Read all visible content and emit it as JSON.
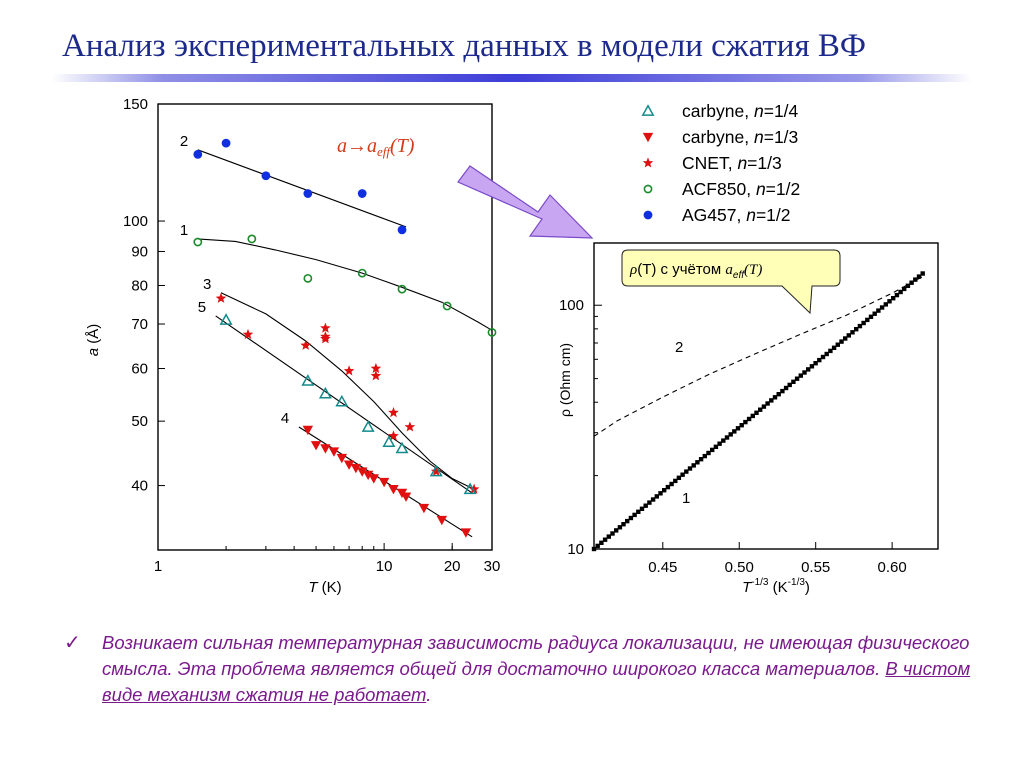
{
  "title": "Анализ экспериментальных данных в модели сжатия ВФ",
  "annotation_left": {
    "a": "a",
    "arrow": "→",
    "a_eff": "a",
    "eff_sub": "eff",
    "arg": "(T)"
  },
  "callout": {
    "rho": "ρ",
    "T": "(T)",
    "middle": " с учётом ",
    "a": "a",
    "eff_sub": "eff",
    "arg": "(T)"
  },
  "colors": {
    "title": "#1c2a8c",
    "text": "#7a1a8c",
    "annotation": "#d43a1a",
    "blue": "#1030e0",
    "green": "#1a8a2a",
    "red": "#e01010",
    "teal": "#138a8a",
    "arrow_fill": "#c9a6f2",
    "callout_fill": "#ffffb8"
  },
  "conclusion": {
    "check": "✓",
    "text": "Возникает сильная температурная зависимость радиуса локализации, не имеющая физического смысла. Эта проблема является общей для достаточно широкого класса материалов. ",
    "emph": "В чистом виде механизм сжатия не работает",
    "end": "."
  },
  "chart_data": [
    {
      "type": "scatter",
      "scale": "log-log",
      "xlabel_italic": "T",
      "xlabel_rest": " (K)",
      "ylabel_italic": "a",
      "ylabel_rest": " (Å)",
      "xlim": [
        1,
        30
      ],
      "ylim": [
        32,
        150
      ],
      "x_ticks": [
        {
          "value": 1,
          "label": "1"
        },
        {
          "value": 10,
          "label": "10"
        },
        {
          "value": 20,
          "label": "20"
        },
        {
          "value": 30,
          "label": "30"
        }
      ],
      "y_ticks": [
        {
          "value": 150,
          "label": "150"
        },
        {
          "value": 100,
          "label": "100"
        },
        {
          "value": 90,
          "label": "90"
        },
        {
          "value": 80,
          "label": "80"
        },
        {
          "value": 70,
          "label": "70"
        },
        {
          "value": 60,
          "label": "60"
        },
        {
          "value": 50,
          "label": "50"
        },
        {
          "value": 40,
          "label": "40"
        }
      ],
      "legend": [
        {
          "marker": "triangle-up",
          "color": "#138a8a",
          "label": "carbyne, ",
          "n": "n",
          "eq": "=1/4"
        },
        {
          "marker": "triangle-down",
          "color": "#e01010",
          "label": "carbyne, ",
          "n": "n",
          "eq": "=1/3"
        },
        {
          "marker": "star",
          "color": "#e01010",
          "label": "CNET,    ",
          "n": "n",
          "eq": "=1/3"
        },
        {
          "marker": "circle-open",
          "color": "#1a8a2a",
          "label": "ACF850, ",
          "n": "n",
          "eq": "=1/2"
        },
        {
          "marker": "circle-filled",
          "color": "#1030e0",
          "label": "AG457,   ",
          "n": "n",
          "eq": "=1/2"
        }
      ],
      "series": [
        {
          "label": "2",
          "marker": "circle-filled",
          "color": "#1030e0",
          "x": [
            1.5,
            2.0,
            3.0,
            4.6,
            8.0,
            12.0
          ],
          "y": [
            126,
            131,
            117,
            110,
            110,
            97
          ],
          "fit": {
            "x": [
              1.5,
              12.5
            ],
            "y": [
              128,
              98
            ]
          }
        },
        {
          "label": "1",
          "marker": "circle-open",
          "color": "#1a8a2a",
          "x": [
            1.5,
            2.6,
            4.6,
            8.0,
            12.0,
            19.0,
            30.0
          ],
          "y": [
            93,
            94,
            82,
            83.5,
            79,
            74.5,
            68
          ],
          "fit": {
            "x": [
              1.5,
              2.2,
              3.3,
              5,
              8,
              12,
              18,
              26,
              30
            ],
            "y": [
              94,
              93.2,
              90.5,
              87.5,
              83.5,
              79.5,
              75.5,
              70.5,
              68.5
            ]
          }
        },
        {
          "label": "3",
          "marker": "star",
          "color": "#e01010",
          "x": [
            1.9,
            2.5,
            4.5,
            5.5,
            5.5,
            5.5,
            7.0,
            9.2,
            9.2,
            11.0,
            11.0,
            13.0,
            17.0,
            25.0
          ],
          "y": [
            76.5,
            67.5,
            65,
            69,
            67,
            66.5,
            59.5,
            60,
            58.5,
            51.5,
            47.5,
            49,
            42,
            39.5
          ],
          "fit": {
            "x": [
              1.9,
              3,
              4.5,
              6.5,
              9,
              12,
              16,
              20,
              25
            ],
            "y": [
              78,
              72.5,
              66,
              59.5,
              53.5,
              48,
              43.5,
              41,
              39.5
            ]
          }
        },
        {
          "label": "5",
          "marker": "triangle-up",
          "color": "#138a8a",
          "x": [
            2.0,
            4.6,
            5.5,
            6.5,
            8.5,
            10.5,
            12.0,
            17.0,
            24.0
          ],
          "y": [
            71,
            57.5,
            55,
            53.5,
            49,
            46.5,
            45.5,
            42,
            39.5
          ],
          "fit": {
            "x": [
              1.8,
              24.5
            ],
            "y": [
              72,
              39
            ]
          }
        },
        {
          "label": "4",
          "marker": "triangle-down",
          "color": "#e01010",
          "x": [
            4.6,
            5.0,
            5.5,
            6.0,
            6.5,
            7.0,
            7.5,
            8.0,
            8.5,
            9.0,
            10.0,
            11.0,
            12.0,
            12.5,
            15.0,
            18.0,
            23.0
          ],
          "y": [
            48.5,
            46,
            45.5,
            45,
            44,
            43,
            42.5,
            42,
            41.5,
            41,
            40.5,
            39.5,
            39,
            38.5,
            37,
            35.5,
            34
          ],
          "fit": {
            "x": [
              4.2,
              24.5
            ],
            "y": [
              49,
              33.5
            ]
          }
        }
      ]
    },
    {
      "type": "line",
      "scale": "log-y",
      "xlabel_italic": "T",
      "xlabel_sup": "-1/3",
      "xlabel_rest": " (K",
      "xlabel_sup2": "-1/3",
      "xlabel_end": ")",
      "ylabel": "ρ (Ohm cm)",
      "xlim": [
        0.405,
        0.63
      ],
      "ylim": [
        10,
        180
      ],
      "x_ticks": [
        {
          "value": 0.45,
          "label": "0.45"
        },
        {
          "value": 0.5,
          "label": "0.50"
        },
        {
          "value": 0.55,
          "label": "0.55"
        },
        {
          "value": 0.6,
          "label": "0.60"
        }
      ],
      "y_ticks": [
        {
          "value": 100,
          "label": "100"
        },
        {
          "value": 10,
          "label": "10"
        }
      ],
      "series": [
        {
          "label": "1",
          "style": "solid-markers",
          "x": [
            0.405,
            0.62
          ],
          "y": [
            10,
            135
          ],
          "markers_from": 0.405,
          "markers_to": 0.62,
          "marker_count": 90
        },
        {
          "label": "2",
          "style": "dashed",
          "x": [
            0.405,
            0.42,
            0.45,
            0.48,
            0.51,
            0.54,
            0.57,
            0.6,
            0.62
          ],
          "y": [
            29,
            33.5,
            42,
            52,
            63,
            76,
            91,
            112,
            131
          ]
        }
      ]
    }
  ]
}
